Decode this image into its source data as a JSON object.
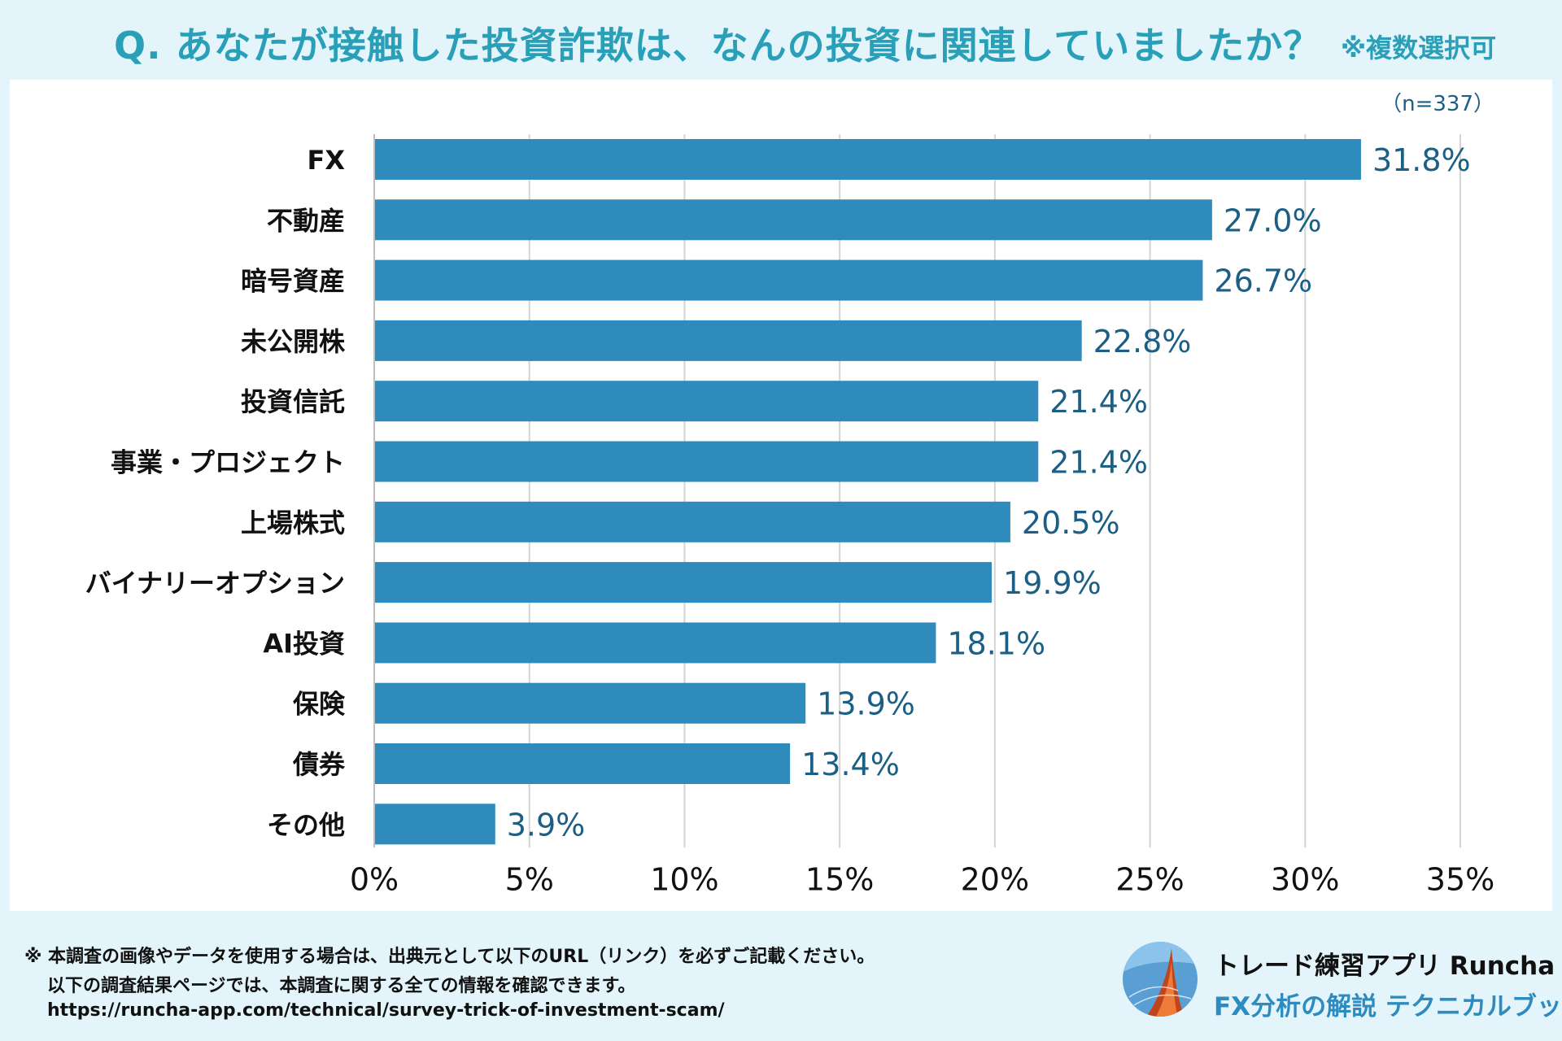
{
  "header": {
    "question": "Q. あなたが接触した投資詐欺は、なんの投資に関連していましたか？",
    "multi_select_note": "※複数選択可"
  },
  "colors": {
    "bar": "#2e8bbb",
    "value_text": "#1c5f85",
    "title": "#2aa0b8",
    "gridline": "#d4d4d4"
  },
  "chart_data": {
    "type": "bar",
    "orientation": "horizontal",
    "sample_size": "（n=337）",
    "categories": [
      "FX",
      "不動産",
      "暗号資産",
      "未公開株",
      "投資信託",
      "事業・プロジェクト",
      "上場株式",
      "バイナリーオプション",
      "AI投資",
      "保険",
      "債券",
      "その他"
    ],
    "values": [
      31.8,
      27.0,
      26.7,
      22.8,
      21.4,
      21.4,
      20.5,
      19.9,
      18.1,
      13.9,
      13.4,
      3.9
    ],
    "value_labels": [
      "31.8%",
      "27.0%",
      "26.7%",
      "22.8%",
      "21.4%",
      "21.4%",
      "20.5%",
      "19.9%",
      "18.1%",
      "13.9%",
      "13.4%",
      "3.9%"
    ],
    "x_ticks": [
      0,
      5,
      10,
      15,
      20,
      25,
      30,
      35
    ],
    "x_tick_labels": [
      "0%",
      "5%",
      "10%",
      "15%",
      "20%",
      "25%",
      "30%",
      "35%"
    ],
    "xlim": [
      0,
      35
    ],
    "grid": true,
    "xlabel": "",
    "ylabel": ""
  },
  "footer": {
    "line1": "※ 本調査の画像やデータを使用する場合は、出典元として以下のURL（リンク）を必ずご記載ください。",
    "line2": "以下の調査結果ページでは、本調査に関する全ての情報を確認できます。",
    "url": "https://runcha-app.com/technical/survey-trick-of-investment-scam/",
    "brand_title": "トレード練習アプリ Runcha",
    "brand_subtitle": "FX分析の解説 テクニカルブック",
    "logo_icon": "runcha-logo-icon"
  }
}
